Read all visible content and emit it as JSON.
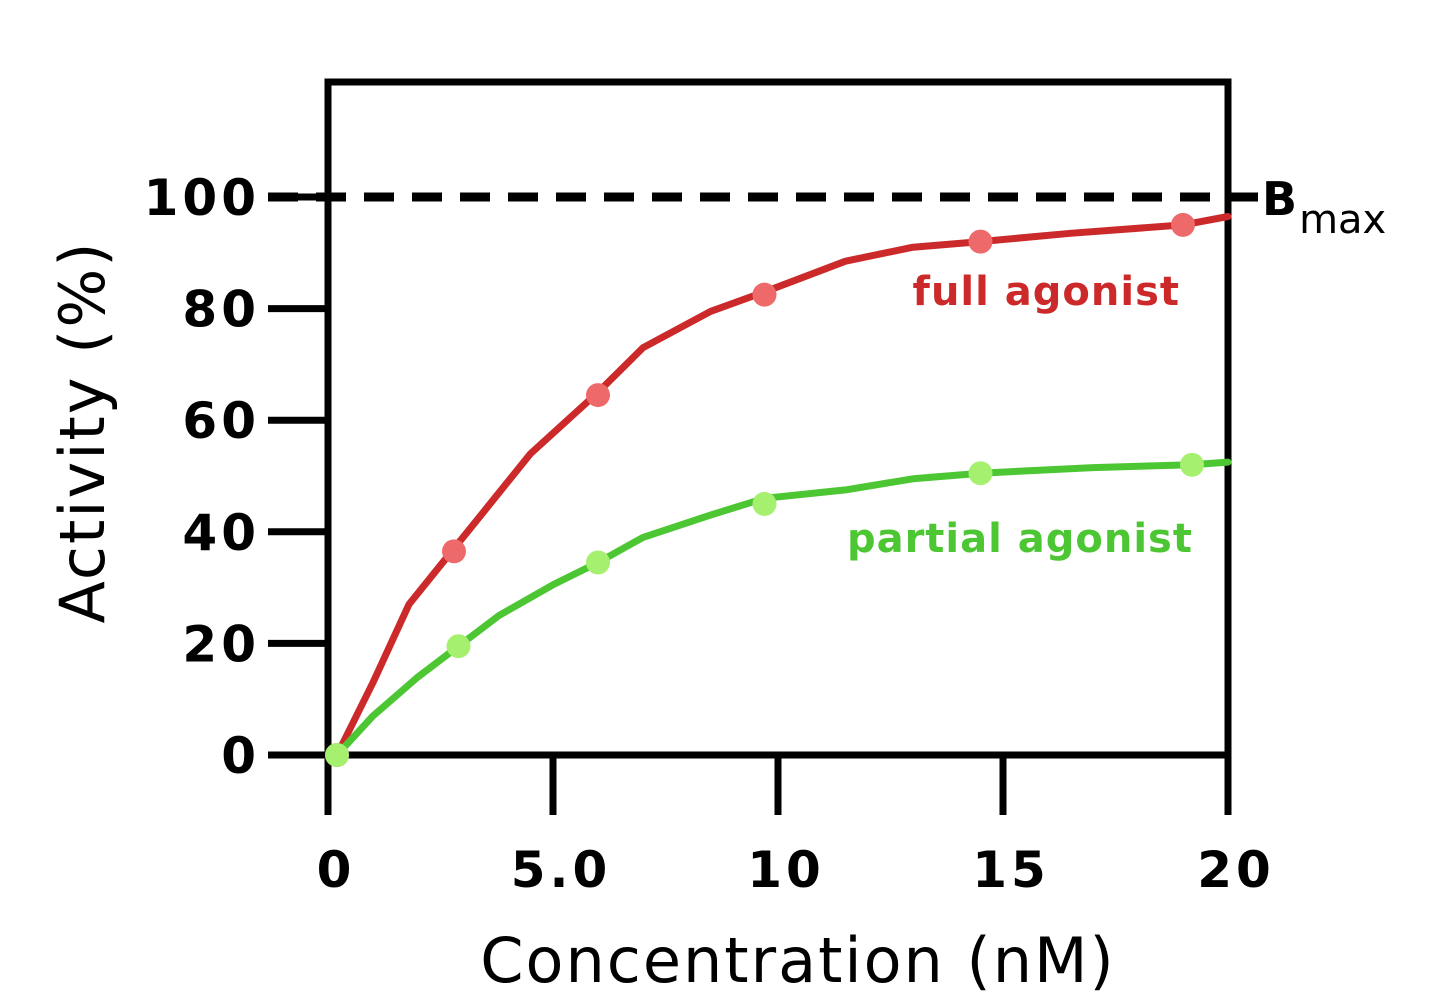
{
  "chart_data": {
    "type": "line",
    "xlabel": "Concentration (nM)",
    "ylabel": "Activity (%)",
    "xlim": [
      0,
      20
    ],
    "ylim": [
      0,
      100
    ],
    "x_ticks": [
      {
        "value": 0,
        "label": "0"
      },
      {
        "value": 5,
        "label": "5.0"
      },
      {
        "value": 10,
        "label": "10"
      },
      {
        "value": 15,
        "label": "15"
      },
      {
        "value": 20,
        "label": "20"
      }
    ],
    "y_ticks": [
      {
        "value": 0,
        "label": "0"
      },
      {
        "value": 20,
        "label": "20"
      },
      {
        "value": 40,
        "label": "40"
      },
      {
        "value": 60,
        "label": "60"
      },
      {
        "value": 80,
        "label": "80"
      },
      {
        "value": 100,
        "label": "100"
      }
    ],
    "grid": false,
    "reference_line": {
      "value": 100,
      "style": "dashed",
      "label_main": "B",
      "label_sub": "max"
    },
    "series": [
      {
        "name": "full agonist",
        "color": "#cc2a2a",
        "point_color": "#ee6a6a",
        "points": [
          {
            "x": 0.2,
            "y": 0
          },
          {
            "x": 2.8,
            "y": 36.5
          },
          {
            "x": 6.0,
            "y": 64.5
          },
          {
            "x": 9.7,
            "y": 82.5
          },
          {
            "x": 14.5,
            "y": 92
          },
          {
            "x": 19.0,
            "y": 95
          }
        ],
        "curve": [
          {
            "x": 0.2,
            "y": 0
          },
          {
            "x": 1.0,
            "y": 13
          },
          {
            "x": 1.8,
            "y": 27
          },
          {
            "x": 2.8,
            "y": 37
          },
          {
            "x": 3.5,
            "y": 44
          },
          {
            "x": 4.5,
            "y": 54
          },
          {
            "x": 6.0,
            "y": 65
          },
          {
            "x": 7.0,
            "y": 73
          },
          {
            "x": 8.5,
            "y": 79.5
          },
          {
            "x": 9.7,
            "y": 83
          },
          {
            "x": 11.5,
            "y": 88.5
          },
          {
            "x": 13.0,
            "y": 91
          },
          {
            "x": 14.5,
            "y": 92
          },
          {
            "x": 16.5,
            "y": 93.5
          },
          {
            "x": 19.0,
            "y": 95
          },
          {
            "x": 20.0,
            "y": 96.5
          }
        ]
      },
      {
        "name": "partial agonist",
        "color": "#4cc733",
        "point_color": "#a6f070",
        "points": [
          {
            "x": 0.2,
            "y": 0
          },
          {
            "x": 2.9,
            "y": 19.5
          },
          {
            "x": 6.0,
            "y": 34.5
          },
          {
            "x": 9.7,
            "y": 45
          },
          {
            "x": 14.5,
            "y": 50.5
          },
          {
            "x": 19.2,
            "y": 52
          }
        ],
        "curve": [
          {
            "x": 0.2,
            "y": 0
          },
          {
            "x": 1.0,
            "y": 7
          },
          {
            "x": 2.0,
            "y": 14
          },
          {
            "x": 2.9,
            "y": 19.5
          },
          {
            "x": 3.8,
            "y": 25
          },
          {
            "x": 5.0,
            "y": 30.5
          },
          {
            "x": 6.0,
            "y": 34.5
          },
          {
            "x": 7.0,
            "y": 39
          },
          {
            "x": 8.5,
            "y": 43
          },
          {
            "x": 9.7,
            "y": 46
          },
          {
            "x": 11.5,
            "y": 47.5
          },
          {
            "x": 13.0,
            "y": 49.5
          },
          {
            "x": 14.5,
            "y": 50.5
          },
          {
            "x": 17.0,
            "y": 51.5
          },
          {
            "x": 19.2,
            "y": 52
          },
          {
            "x": 20.0,
            "y": 52.5
          }
        ]
      }
    ]
  }
}
